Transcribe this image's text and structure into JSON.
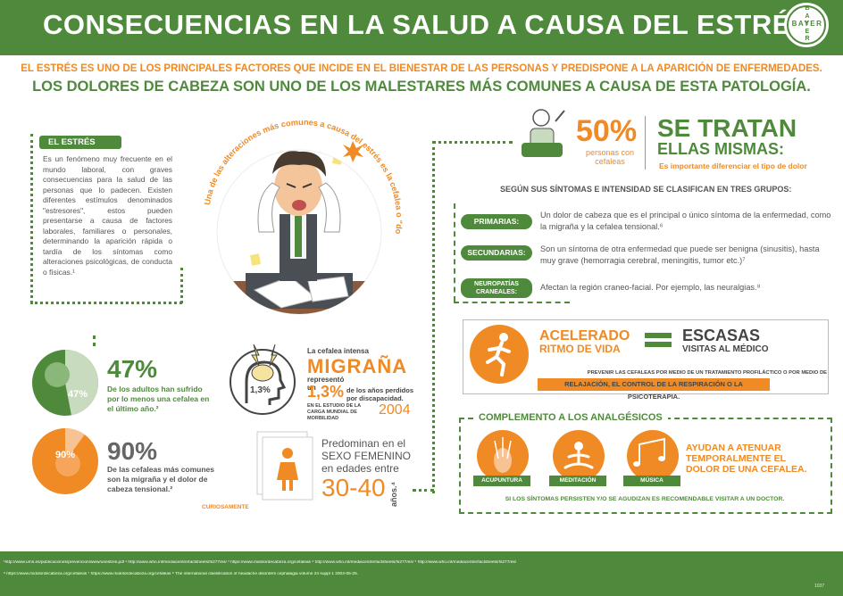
{
  "header": {
    "title": "CONSECUENCIAS EN LA SALUD A CAUSA DEL ESTRÉS",
    "logo_text_h": "BAYER",
    "logo_text_v": "BAYER"
  },
  "intro": {
    "line1": "EL ESTRÉS ES UNO DE LOS PRINCIPALES FACTORES QUE INCIDE EN EL BIENESTAR DE LAS PERSONAS Y  PREDISPONE A LA APARICIÓN DE ENFERMEDADES.",
    "line2": "LOS DOLORES DE CABEZA SON UNO DE LOS MALESTARES MÁS COMUNES A CAUSA DE ESTA PATOLOGÍA."
  },
  "estres": {
    "label": "EL ESTRÉS",
    "text": "Es un fenómeno muy frecuente en el mundo laboral, con graves consecuencias para la salud de las personas que lo padecen. Existen diferentes estímulos denominados \"estresores\", estos pueden presentarse a causa de factores laborales, familiares o personales, determinando la aparición rápida o tardía de los síntomas como alteraciones psicológicas, de conducta o físicas.¹"
  },
  "arc_text": "Una de las alteraciones más comunes a causa del estrés es la cefalea o \"dolor de cabeza\"",
  "stats": {
    "s47": {
      "circle": "47%",
      "pct": "47%",
      "text": "De los adultos han sufrido por lo menos una cefalea en el último año.²",
      "value": 47
    },
    "s90": {
      "circle": "90%",
      "pct": "90%",
      "text": "De las cefaleas más comunes son la migraña y el dolor de cabeza tensional.²",
      "value": 90
    }
  },
  "migrana": {
    "badge": "1,3%",
    "pre": "La cefalea intensa",
    "title": "MIGRAÑA",
    "rep": "representó un",
    "pct": "1,3%",
    "lost": "de los años perdidos por discapacidad.",
    "study": "EN EL ESTUDIO DE LA CARGA MUNDIAL DE MORBILIDAD",
    "year": "2004"
  },
  "sexo": {
    "line1": "Predominan en el",
    "line2": "SEXO FEMENINO",
    "line3": "en edades entre",
    "ages": "30-40",
    "years": "años.⁴",
    "caption": "CURIOSAMENTE"
  },
  "selftreat": {
    "pct": "50%",
    "pct_label": "personas con cefaleas",
    "title1": "SE TRATAN",
    "title2": "ELLAS MISMAS:",
    "subtitle": "Es importante diferenciar el tipo de dolor"
  },
  "classify": {
    "heading": "SEGÚN SUS SÍNTOMAS E INTENSIDAD SE CLASIFICAN EN TRES GRUPOS:",
    "items": [
      {
        "label": "PRIMARIAS:",
        "text": "Un dolor de cabeza que es el principal o único síntoma de la enfermedad, como la migraña y la cefalea tensional.⁶"
      },
      {
        "label": "SECUNDARIAS:",
        "text": "Son un síntoma de otra enfermedad que puede ser benigna (sinusitis), hasta muy grave (hemorragia cerebral, meningitis, tumor etc.)⁷"
      },
      {
        "label": "NEUROPATÍAS CRANEALES:",
        "text": "Afectan la región craneo-facial. Por ejemplo, las neuralgias.⁸"
      }
    ]
  },
  "ritmo": {
    "left1": "ACELERADO",
    "left2": "RITMO DE VIDA",
    "right1": "ESCASAS",
    "right2": "VISITAS AL MÉDICO",
    "prevent": "PREVENIR LAS CEFALEAS POR MEDIO DE UN TRATAMIENTO PROFILÁCTICO O POR MEDIO DE",
    "prevent_bar": "RELAJACIÓN, EL CONTROL DE LA RESPIRACIÓN O LA PSICOTERAPIA."
  },
  "complemento": {
    "title": "COMPLEMENTO A LOS ANALGÉSICOS",
    "items": [
      "ACUPUNTURA",
      "MEDITACIÓN",
      "MÚSICA"
    ],
    "side": "AYUDAN A ATENUAR TEMPORALMENTE EL DOLOR DE UNA CEFALEA.",
    "note": "SI LOS SÍNTOMAS PERSISTEN Y/O SE AGUDIZAN ES RECOMENDABLE VISITAR A UN DOCTOR."
  },
  "footer": {
    "refs1": "¹http://www.ums.es/publicaciones/prevencion/www/unestres.pdf   ² http://www.who.int/mediacentre/factsheets/fs277/es/   ³ https://www.midolordecabeza.org/cefaleas   ⁴ http://www.who.int/mediacentre/factsheets/fs277/es/   ⁵ http://www.who.int/mediacentre/factsheets/fs277/es/",
    "refs2": "⁶ https://www.midolordecabeza.org/cefaleas   ⁷ https://www.midolordecabeza.org/cefaleas   ⁸ The international classification of headache disorders cephalagia volume 24 suppl 1 2004-05-25.",
    "code": "1037"
  },
  "colors": {
    "green": "#4f8a3c",
    "orange": "#f08a24"
  }
}
